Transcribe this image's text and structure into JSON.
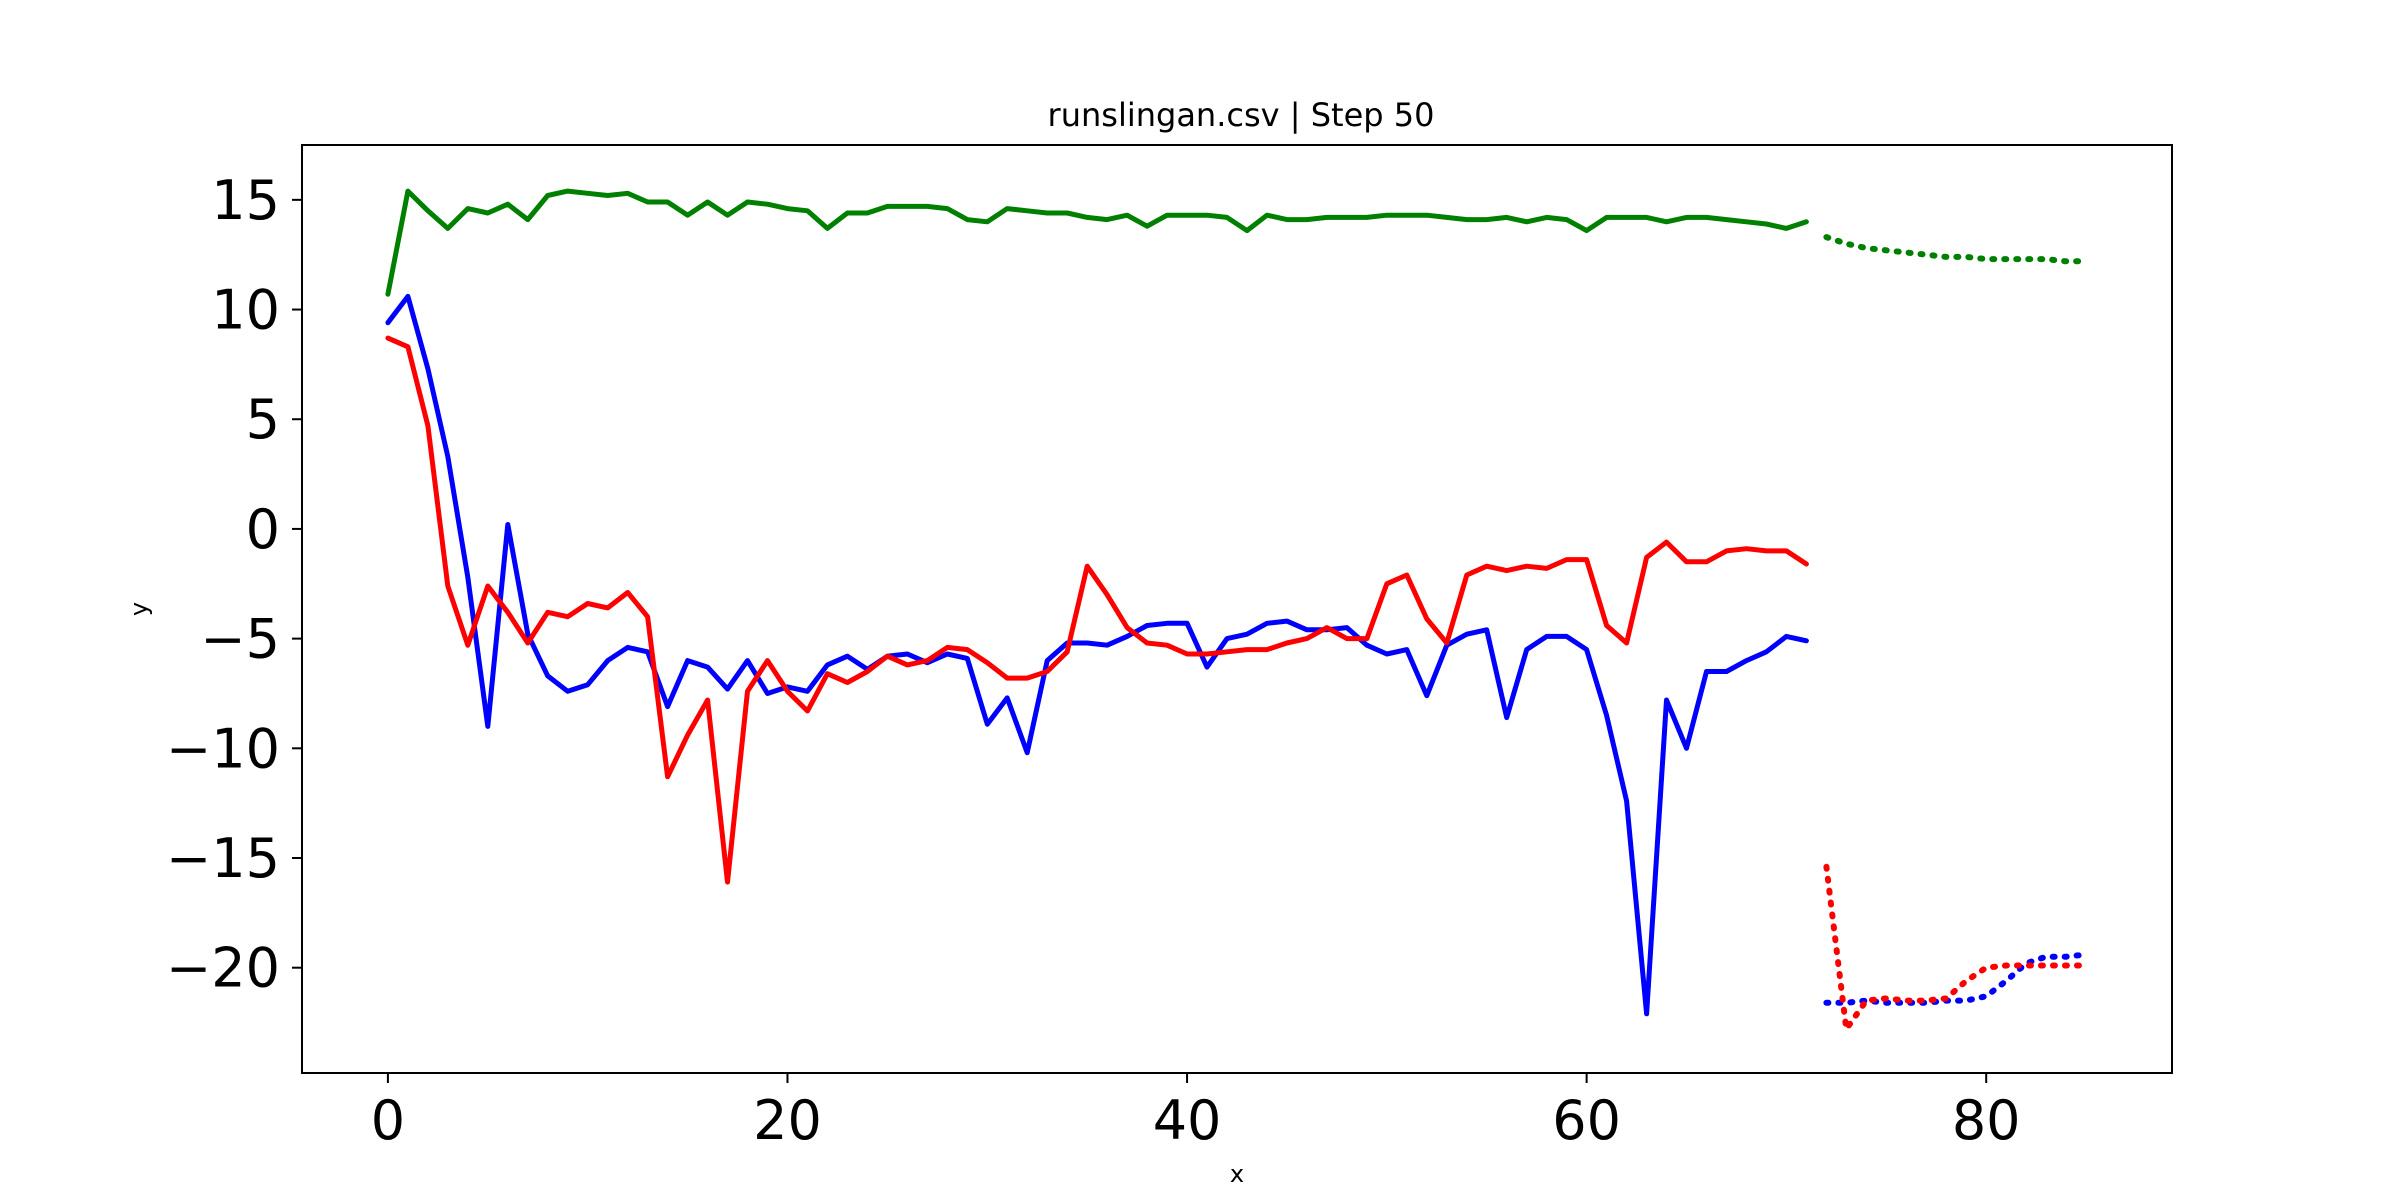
{
  "chart_data": {
    "type": "line",
    "title": "runslingan.csv | Step 50",
    "xlabel": "x",
    "ylabel": "y",
    "xlim": [
      -4.3,
      89.3
    ],
    "ylim": [
      -24.8,
      17.5
    ],
    "xticks": [
      0,
      20,
      40,
      60,
      80
    ],
    "yticks": [
      15,
      10,
      5,
      0,
      -5,
      -10,
      -15,
      -20
    ],
    "grid": false,
    "legend": "none",
    "series": [
      {
        "color": "#008000",
        "style": "solid",
        "x_start": 0,
        "values": [
          10.7,
          15.4,
          14.5,
          13.7,
          14.6,
          14.4,
          14.8,
          14.1,
          15.2,
          15.4,
          15.3,
          15.2,
          15.3,
          14.9,
          14.9,
          14.3,
          14.9,
          14.3,
          14.9,
          14.8,
          14.6,
          14.5,
          13.7,
          14.4,
          14.4,
          14.7,
          14.7,
          14.7,
          14.6,
          14.1,
          14.0,
          14.6,
          14.5,
          14.4,
          14.4,
          14.2,
          14.1,
          14.3,
          13.8,
          14.3,
          14.3,
          14.3,
          14.2,
          13.6,
          14.3,
          14.1,
          14.1,
          14.2,
          14.2,
          14.2,
          14.3,
          14.3,
          14.3,
          14.2,
          14.1,
          14.1,
          14.2,
          14.0,
          14.2,
          14.1,
          13.6,
          14.2,
          14.2,
          14.2,
          14.0,
          14.2,
          14.2,
          14.1,
          14.0,
          13.9,
          13.7,
          14.0
        ]
      },
      {
        "color": "#0000ff",
        "style": "solid",
        "x_start": 0,
        "values": [
          9.4,
          10.6,
          7.3,
          3.3,
          -2.2,
          -9.0,
          0.2,
          -4.8,
          -6.7,
          -7.4,
          -7.1,
          -6.0,
          -5.4,
          -5.6,
          -8.1,
          -6.0,
          -6.3,
          -7.3,
          -6.0,
          -7.5,
          -7.2,
          -7.4,
          -6.2,
          -5.8,
          -6.4,
          -5.8,
          -5.7,
          -6.1,
          -5.7,
          -5.9,
          -8.9,
          -7.7,
          -10.2,
          -6.0,
          -5.2,
          -5.2,
          -5.3,
          -4.9,
          -4.4,
          -4.3,
          -4.3,
          -6.3,
          -5.0,
          -4.8,
          -4.3,
          -4.2,
          -4.6,
          -4.6,
          -4.5,
          -5.3,
          -5.7,
          -5.5,
          -7.6,
          -5.3,
          -4.8,
          -4.6,
          -8.6,
          -5.5,
          -4.9,
          -4.9,
          -5.5,
          -8.5,
          -12.4,
          -22.1,
          -7.8,
          -10.0,
          -6.5,
          -6.5,
          -6.0,
          -5.6,
          -4.9,
          -5.1
        ]
      },
      {
        "color": "#ff0000",
        "style": "solid",
        "x_start": 0,
        "values": [
          8.7,
          8.3,
          4.7,
          -2.6,
          -5.3,
          -2.6,
          -3.8,
          -5.2,
          -3.8,
          -4.0,
          -3.4,
          -3.6,
          -2.9,
          -4.0,
          -11.3,
          -9.4,
          -7.8,
          -16.1,
          -7.4,
          -6.0,
          -7.4,
          -8.3,
          -6.6,
          -7.0,
          -6.5,
          -5.8,
          -6.2,
          -6.0,
          -5.4,
          -5.5,
          -6.1,
          -6.8,
          -6.8,
          -6.5,
          -5.6,
          -1.7,
          -3.0,
          -4.5,
          -5.2,
          -5.3,
          -5.7,
          -5.7,
          -5.6,
          -5.5,
          -5.5,
          -5.2,
          -5.0,
          -4.5,
          -5.0,
          -5.0,
          -2.5,
          -2.1,
          -4.1,
          -5.2,
          -2.1,
          -1.7,
          -1.9,
          -1.7,
          -1.8,
          -1.4,
          -1.4,
          -4.4,
          -5.2,
          -1.3,
          -0.6,
          -1.5,
          -1.5,
          -1.0,
          -0.9,
          -1.0,
          -1.0,
          -1.6
        ]
      },
      {
        "color": "#008000",
        "style": "dotted",
        "x_start": 72,
        "values": [
          13.3,
          13.0,
          12.8,
          12.7,
          12.6,
          12.5,
          12.4,
          12.4,
          12.3,
          12.3,
          12.3,
          12.3,
          12.2,
          12.2
        ]
      },
      {
        "color": "#0000ff",
        "style": "dotted",
        "x_start": 72,
        "values": [
          -21.6,
          -21.6,
          -21.5,
          -21.6,
          -21.6,
          -21.6,
          -21.5,
          -21.5,
          -21.3,
          -20.6,
          -19.8,
          -19.5,
          -19.5,
          -19.4
        ]
      },
      {
        "color": "#ff0000",
        "style": "dotted",
        "x_start": 72,
        "values": [
          -15.4,
          -22.8,
          -21.5,
          -21.4,
          -21.5,
          -21.5,
          -21.4,
          -20.6,
          -20.0,
          -19.9,
          -19.9,
          -19.9,
          -19.9,
          -19.9
        ]
      }
    ]
  }
}
